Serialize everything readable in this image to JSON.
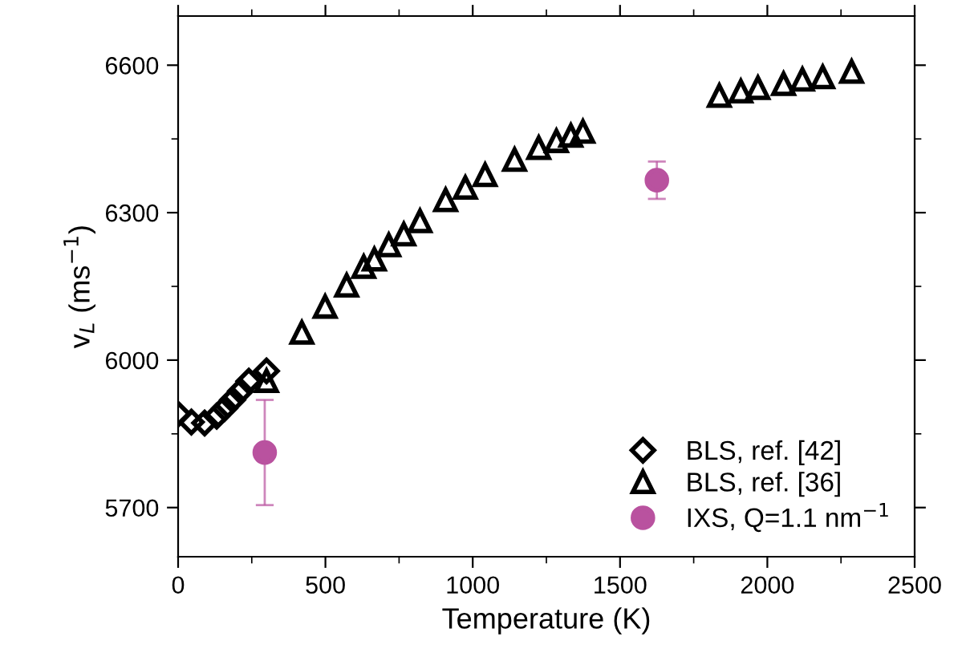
{
  "chart_data": {
    "type": "scatter",
    "xlabel": "Temperature (K)",
    "ylabel": "v$_{L}$ (ms$^{−1}$)",
    "xlim": [
      0,
      2500
    ],
    "ylim": [
      5600,
      6700
    ],
    "xticks": [
      0,
      500,
      1000,
      1500,
      2000,
      2500
    ],
    "yticks": [
      5700,
      6000,
      6300,
      6600
    ],
    "grid": false,
    "legend": "bottom right",
    "series": [
      {
        "name": "BLS, ref. [42]",
        "color": "#000000",
        "marker": "diamond",
        "x": [
          0,
          45,
          90,
          131,
          158,
          185,
          212,
          240,
          300
        ],
        "values": [
          5890,
          5874,
          5872,
          5886,
          5902,
          5919,
          5937,
          5957,
          5978
        ]
      },
      {
        "name": "BLS, ref. [36]",
        "color": "#000000",
        "marker": "triangle",
        "x": [
          300,
          420,
          499,
          572,
          630,
          666,
          715,
          766,
          821,
          908,
          975,
          1042,
          1142,
          1224,
          1284,
          1333,
          1374,
          1837,
          1910,
          1968,
          2055,
          2119,
          2188,
          2286
        ],
        "values": [
          5958,
          6056,
          6109,
          6152,
          6190,
          6205,
          6234,
          6256,
          6283,
          6326,
          6351,
          6377,
          6408,
          6432,
          6446,
          6457,
          6465,
          6538,
          6547,
          6554,
          6562,
          6571,
          6576,
          6587
        ]
      },
      {
        "name": "IXS, Q=1.1 nm$^{−1}$",
        "color": "#b9529f",
        "marker": "circle",
        "x": [
          294,
          1625
        ],
        "values": [
          5812,
          6366
        ],
        "errors": [
          107,
          38
        ]
      }
    ]
  }
}
